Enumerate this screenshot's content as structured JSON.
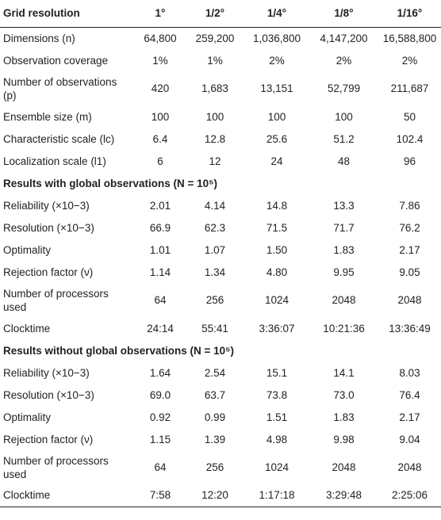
{
  "table": {
    "header": {
      "label": "Grid resolution",
      "cols": [
        "1°",
        "1/2°",
        "1/4°",
        "1/8°",
        "1/16°"
      ]
    },
    "rows": [
      {
        "label": "Dimensions (n)",
        "values": [
          "64,800",
          "259,200",
          "1,036,800",
          "4,147,200",
          "16,588,800"
        ]
      },
      {
        "label": "Observation coverage",
        "values": [
          "1%",
          "1%",
          "2%",
          "2%",
          "2%"
        ]
      },
      {
        "label": "Number of observations (p)",
        "values": [
          "420",
          "1,683",
          "13,151",
          "52,799",
          "211,687"
        ]
      },
      {
        "label": "Ensemble size (m)",
        "values": [
          "100",
          "100",
          "100",
          "100",
          "50"
        ]
      },
      {
        "label": "Characteristic scale (lc)",
        "values": [
          "6.4",
          "12.8",
          "25.6",
          "51.2",
          "102.4"
        ]
      },
      {
        "label": "Localization scale (l1)",
        "values": [
          "6",
          "12",
          "24",
          "48",
          "96"
        ]
      }
    ],
    "section_global": {
      "title": "Results with global observations (N = 10⁵)",
      "rows": [
        {
          "label": "Reliability (×10−3)",
          "values": [
            "2.01",
            "4.14",
            "14.8",
            "13.3",
            "7.86"
          ]
        },
        {
          "label": "Resolution (×10−3)",
          "values": [
            "66.9",
            "62.3",
            "71.5",
            "71.7",
            "76.2"
          ]
        },
        {
          "label": "Optimality",
          "values": [
            "1.01",
            "1.07",
            "1.50",
            "1.83",
            "2.17"
          ]
        },
        {
          "label": "Rejection factor (ν)",
          "values": [
            "1.14",
            "1.34",
            "4.80",
            "9.95",
            "9.05"
          ]
        },
        {
          "label": "Number of processors used",
          "values": [
            "64",
            "256",
            "1024",
            "2048",
            "2048"
          ]
        },
        {
          "label": "Clocktime",
          "values": [
            "24:14",
            "55:41",
            "3:36:07",
            "10:21:36",
            "13:36:49"
          ]
        }
      ]
    },
    "section_noglobal": {
      "title": "Results without global observations (N = 10⁵)",
      "rows": [
        {
          "label": "Reliability (×10−3)",
          "values": [
            "1.64",
            "2.54",
            "15.1",
            "14.1",
            "8.03"
          ]
        },
        {
          "label": "Resolution (×10−3)",
          "values": [
            "69.0",
            "63.7",
            "73.8",
            "73.0",
            "76.4"
          ]
        },
        {
          "label": "Optimality",
          "values": [
            "0.92",
            "0.99",
            "1.51",
            "1.83",
            "2.17"
          ]
        },
        {
          "label": "Rejection factor (ν)",
          "values": [
            "1.15",
            "1.39",
            "4.98",
            "9.98",
            "9.04"
          ]
        },
        {
          "label": "Number of processors used",
          "values": [
            "64",
            "256",
            "1024",
            "2048",
            "2048"
          ]
        },
        {
          "label": "Clocktime",
          "values": [
            "7:58",
            "12:20",
            "1:17:18",
            "3:29:48",
            "2:25:06"
          ]
        }
      ]
    }
  }
}
